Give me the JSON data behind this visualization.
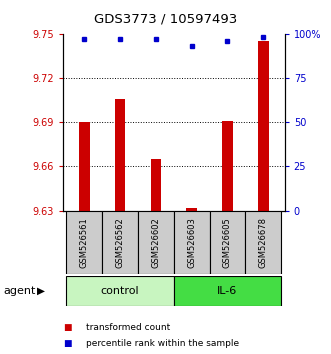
{
  "title": "GDS3773 / 10597493",
  "samples": [
    "GSM526561",
    "GSM526562",
    "GSM526602",
    "GSM526603",
    "GSM526605",
    "GSM526678"
  ],
  "bar_values": [
    9.69,
    9.706,
    9.665,
    9.632,
    9.691,
    9.745
  ],
  "percentile_values": [
    97,
    97,
    97,
    93,
    96,
    98
  ],
  "bar_color": "#cc0000",
  "dot_color": "#0000cc",
  "ylim_left": [
    9.63,
    9.75
  ],
  "ylim_right": [
    0,
    100
  ],
  "yticks_left": [
    9.63,
    9.66,
    9.69,
    9.72,
    9.75
  ],
  "yticks_right": [
    0,
    25,
    50,
    75,
    100
  ],
  "ytick_right_labels": [
    "0",
    "25",
    "50",
    "75",
    "100%"
  ],
  "groups": [
    {
      "label": "control",
      "indices": [
        0,
        1,
        2
      ],
      "color": "#c8f5c0"
    },
    {
      "label": "IL-6",
      "indices": [
        3,
        4,
        5
      ],
      "color": "#44dd44"
    }
  ],
  "group_row_label": "agent",
  "legend_bar_label": "transformed count",
  "legend_dot_label": "percentile rank within the sample",
  "bar_width": 0.3,
  "grid_yticks": [
    9.66,
    9.69,
    9.72
  ],
  "tick_label_color_left": "#cc0000",
  "tick_label_color_right": "#0000cc",
  "sample_box_color": "#cccccc",
  "title_fontsize": 9.5
}
